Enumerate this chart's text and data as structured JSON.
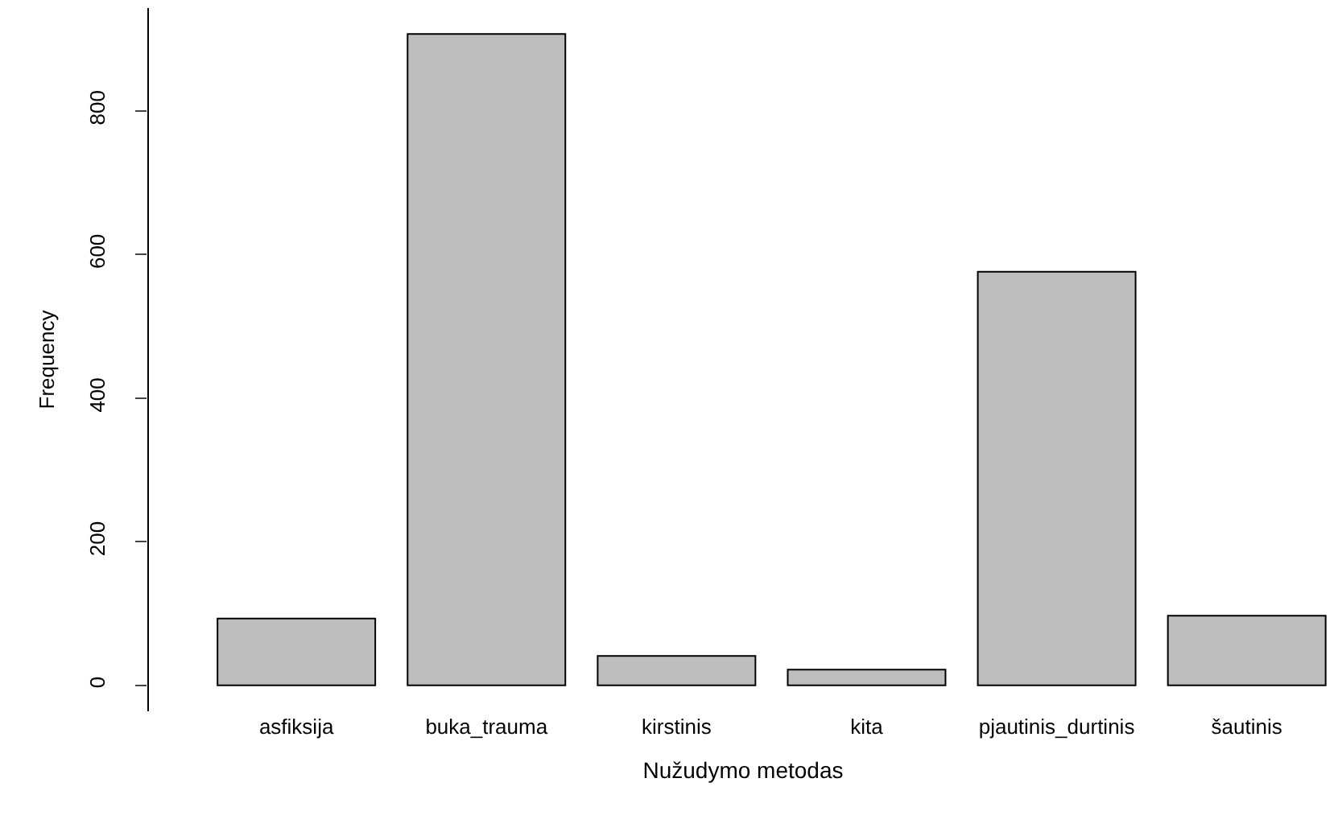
{
  "chart_data": {
    "type": "bar",
    "xlabel": "Nužudymo metodas",
    "ylabel": "Frequency",
    "categories": [
      "asfiksija",
      "buka_trauma",
      "kirstinis",
      "kita",
      "pjautinis_durtinis",
      "šautinis"
    ],
    "values": [
      93,
      907,
      41,
      22,
      576,
      97
    ],
    "color": "#bebebe",
    "ylim": [
      -36,
      943
    ],
    "yticks": [
      0,
      200,
      400,
      600,
      800
    ]
  }
}
